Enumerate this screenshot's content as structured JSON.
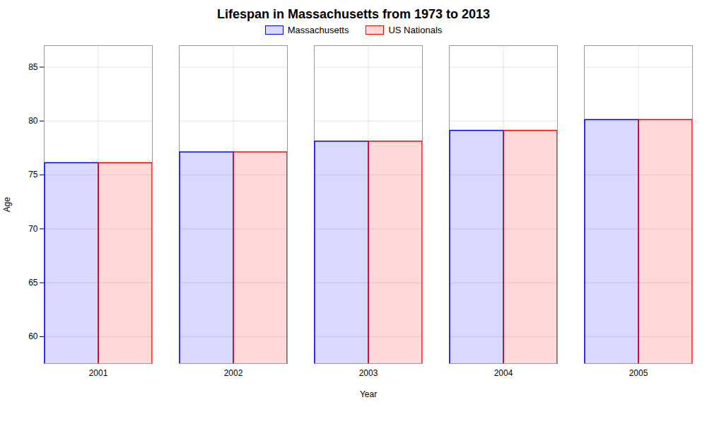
{
  "chart_data": {
    "type": "bar",
    "title": "Lifespan in Massachusetts from 1973 to 2013",
    "xlabel": "Year",
    "ylabel": "Age",
    "categories": [
      2001,
      2002,
      2003,
      2004,
      2005
    ],
    "series": [
      {
        "name": "Massachusetts",
        "color": "#0000ff",
        "values": [
          76.1,
          77.1,
          78.1,
          79.1,
          80.1
        ]
      },
      {
        "name": "US Nationals",
        "color": "#ff0000",
        "values": [
          76.1,
          77.1,
          78.1,
          79.1,
          80.1
        ]
      }
    ],
    "ylim": [
      57.5,
      87
    ],
    "yticks": [
      60,
      65,
      70,
      75,
      80,
      85
    ],
    "grid": true,
    "legend": "top"
  }
}
